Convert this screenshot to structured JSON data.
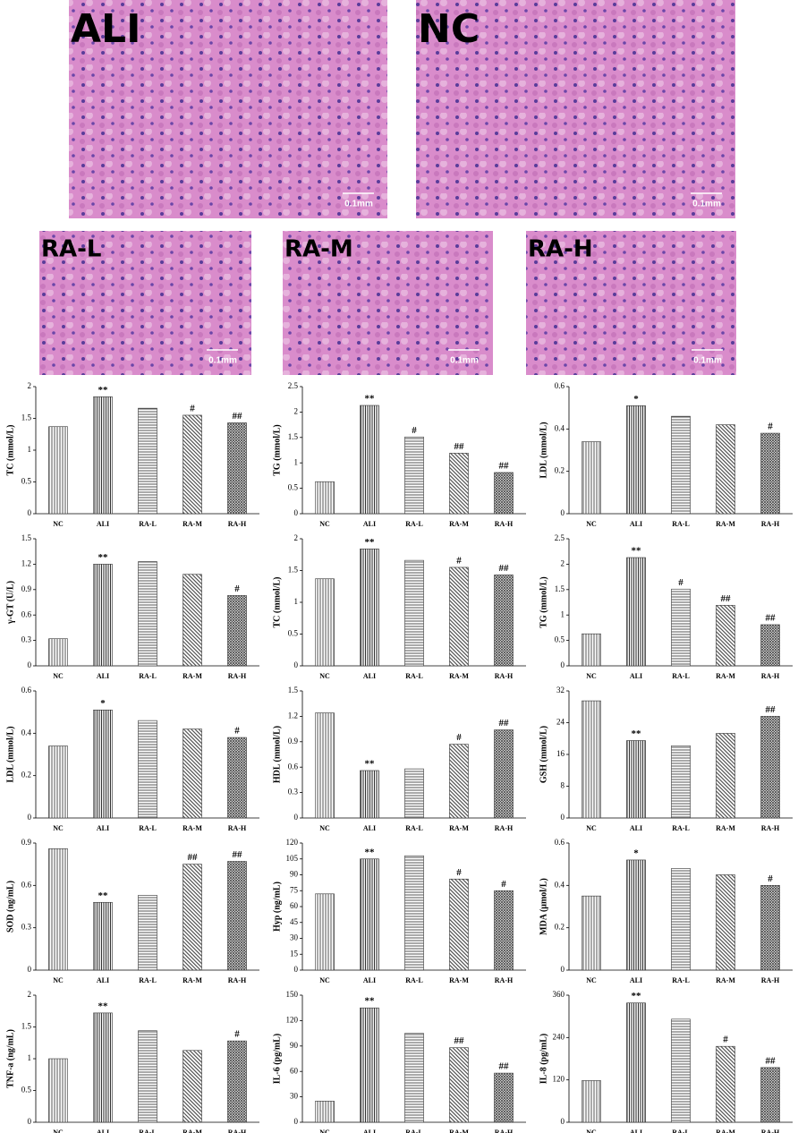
{
  "panels": [
    {
      "label": "ALI",
      "scale": "0.1mm"
    },
    {
      "label": "NC",
      "scale": "0.1mm"
    },
    {
      "label": "RA-L",
      "scale": "0.1mm"
    },
    {
      "label": "RA-M",
      "scale": "0.1mm"
    },
    {
      "label": "RA-H",
      "scale": "0.1mm"
    }
  ],
  "chart_data": [
    {
      "type": "bar",
      "ylabel": "TC (mmol/L)",
      "categories": [
        "NC",
        "ALI",
        "RA-L",
        "RA-M",
        "RA-H"
      ],
      "values": [
        1.37,
        1.84,
        1.66,
        1.55,
        1.43
      ],
      "annotations": [
        null,
        "**",
        null,
        "#",
        "##"
      ],
      "ylim": [
        0,
        2
      ],
      "yticks": [
        0,
        0.5,
        1,
        1.5,
        2
      ]
    },
    {
      "type": "bar",
      "ylabel": "TG (mmol/L)",
      "categories": [
        "NC",
        "ALI",
        "RA-L",
        "RA-M",
        "RA-H"
      ],
      "values": [
        0.63,
        2.13,
        1.51,
        1.19,
        0.81
      ],
      "annotations": [
        null,
        "**",
        "#",
        "##",
        "##"
      ],
      "ylim": [
        0,
        2.5
      ],
      "yticks": [
        0,
        0.5,
        1,
        1.5,
        2,
        2.5
      ]
    },
    {
      "type": "bar",
      "ylabel": "LDL (mmol/L)",
      "categories": [
        "NC",
        "ALI",
        "RA-L",
        "RA-M",
        "RA-H"
      ],
      "values": [
        0.34,
        0.51,
        0.46,
        0.42,
        0.38
      ],
      "annotations": [
        null,
        "*",
        null,
        null,
        "#"
      ],
      "ylim": [
        0,
        0.6
      ],
      "yticks": [
        0,
        0.2,
        0.4,
        0.6
      ]
    },
    {
      "type": "bar",
      "ylabel": "γ-GT (U/L)",
      "categories": [
        "NC",
        "ALI",
        "RA-L",
        "RA-M",
        "RA-H"
      ],
      "values": [
        0.32,
        1.2,
        1.23,
        1.08,
        0.83
      ],
      "annotations": [
        null,
        "**",
        null,
        null,
        "#"
      ],
      "ylim": [
        0,
        1.5
      ],
      "yticks": [
        0,
        0.3,
        0.6,
        0.9,
        1.2,
        1.5
      ]
    },
    {
      "type": "bar",
      "ylabel": "TC (mmol/L)",
      "categories": [
        "NC",
        "ALI",
        "RA-L",
        "RA-M",
        "RA-H"
      ],
      "values": [
        1.37,
        1.84,
        1.66,
        1.55,
        1.43
      ],
      "annotations": [
        null,
        "**",
        null,
        "#",
        "##"
      ],
      "ylim": [
        0,
        2
      ],
      "yticks": [
        0,
        0.5,
        1,
        1.5,
        2
      ]
    },
    {
      "type": "bar",
      "ylabel": "TG (mmol/L)",
      "categories": [
        "NC",
        "ALI",
        "RA-L",
        "RA-M",
        "RA-H"
      ],
      "values": [
        0.63,
        2.13,
        1.51,
        1.19,
        0.81
      ],
      "annotations": [
        null,
        "**",
        "#",
        "##",
        "##"
      ],
      "ylim": [
        0,
        2.5
      ],
      "yticks": [
        0,
        0.5,
        1,
        1.5,
        2,
        2.5
      ]
    },
    {
      "type": "bar",
      "ylabel": "LDL (mmol/L)",
      "categories": [
        "NC",
        "ALI",
        "RA-L",
        "RA-M",
        "RA-H"
      ],
      "values": [
        0.34,
        0.51,
        0.46,
        0.42,
        0.38
      ],
      "annotations": [
        null,
        "*",
        null,
        null,
        "#"
      ],
      "ylim": [
        0,
        0.6
      ],
      "yticks": [
        0,
        0.2,
        0.4,
        0.6
      ]
    },
    {
      "type": "bar",
      "ylabel": "HDL (mmol/L)",
      "categories": [
        "NC",
        "ALI",
        "RA-L",
        "RA-M",
        "RA-H"
      ],
      "values": [
        1.24,
        0.56,
        0.58,
        0.87,
        1.04
      ],
      "annotations": [
        null,
        "**",
        null,
        "#",
        "##"
      ],
      "ylim": [
        0,
        1.5
      ],
      "yticks": [
        0,
        0.3,
        0.6,
        0.9,
        1.2,
        1.5
      ]
    },
    {
      "type": "bar",
      "ylabel": "GSH (mmol/L)",
      "categories": [
        "NC",
        "ALI",
        "RA-L",
        "RA-M",
        "RA-H"
      ],
      "values": [
        29.5,
        19.5,
        18.2,
        21.3,
        25.6
      ],
      "annotations": [
        null,
        "**",
        null,
        null,
        "##"
      ],
      "ylim": [
        0,
        32
      ],
      "yticks": [
        0,
        8,
        16,
        24,
        32
      ]
    },
    {
      "type": "bar",
      "ylabel": "SOD (ng/mL)",
      "categories": [
        "NC",
        "ALI",
        "RA-L",
        "RA-M",
        "RA-H"
      ],
      "values": [
        0.86,
        0.48,
        0.53,
        0.75,
        0.77
      ],
      "annotations": [
        null,
        "**",
        null,
        "##",
        "##"
      ],
      "ylim": [
        0,
        0.9
      ],
      "yticks": [
        0,
        0.3,
        0.6,
        0.9
      ]
    },
    {
      "type": "bar",
      "ylabel": "Hyp (ng/mL)",
      "categories": [
        "NC",
        "ALI",
        "RA-L",
        "RA-M",
        "RA-H"
      ],
      "values": [
        72,
        105,
        108,
        86,
        75
      ],
      "annotations": [
        null,
        "**",
        null,
        "#",
        "#"
      ],
      "ylim": [
        0,
        120
      ],
      "yticks": [
        0,
        15,
        30,
        45,
        60,
        75,
        90,
        105,
        120
      ]
    },
    {
      "type": "bar",
      "ylabel": "MDA (μmol/L)",
      "categories": [
        "NC",
        "ALI",
        "RA-L",
        "RA-M",
        "RA-H"
      ],
      "values": [
        0.35,
        0.52,
        0.48,
        0.45,
        0.4
      ],
      "annotations": [
        null,
        "*",
        null,
        null,
        "#"
      ],
      "ylim": [
        0,
        0.6
      ],
      "yticks": [
        0,
        0.2,
        0.4,
        0.6
      ]
    },
    {
      "type": "bar",
      "ylabel": "TNF-a (ng/mL)",
      "categories": [
        "NC",
        "ALI",
        "RA-L",
        "RA-M",
        "RA-H"
      ],
      "values": [
        1.0,
        1.72,
        1.44,
        1.13,
        1.28
      ],
      "annotations": [
        null,
        "**",
        null,
        null,
        "#"
      ],
      "ylim": [
        0,
        2
      ],
      "yticks": [
        0,
        0.5,
        1,
        1.5,
        2
      ]
    },
    {
      "type": "bar",
      "ylabel": "IL-6 (pg/mL)",
      "categories": [
        "NC",
        "ALI",
        "RA-L",
        "RA-M",
        "RA-H"
      ],
      "values": [
        25,
        135,
        105,
        88,
        58
      ],
      "annotations": [
        null,
        "**",
        null,
        "##",
        "##"
      ],
      "ylim": [
        0,
        150
      ],
      "yticks": [
        0,
        30,
        60,
        90,
        120,
        150
      ]
    },
    {
      "type": "bar",
      "ylabel": "IL-8 (pg/mL)",
      "categories": [
        "NC",
        "ALI",
        "RA-L",
        "RA-M",
        "RA-H"
      ],
      "values": [
        118,
        338,
        292,
        215,
        155
      ],
      "annotations": [
        null,
        "**",
        null,
        "#",
        "##"
      ],
      "ylim": [
        0,
        360
      ],
      "yticks": [
        0,
        120,
        240,
        360
      ]
    }
  ]
}
